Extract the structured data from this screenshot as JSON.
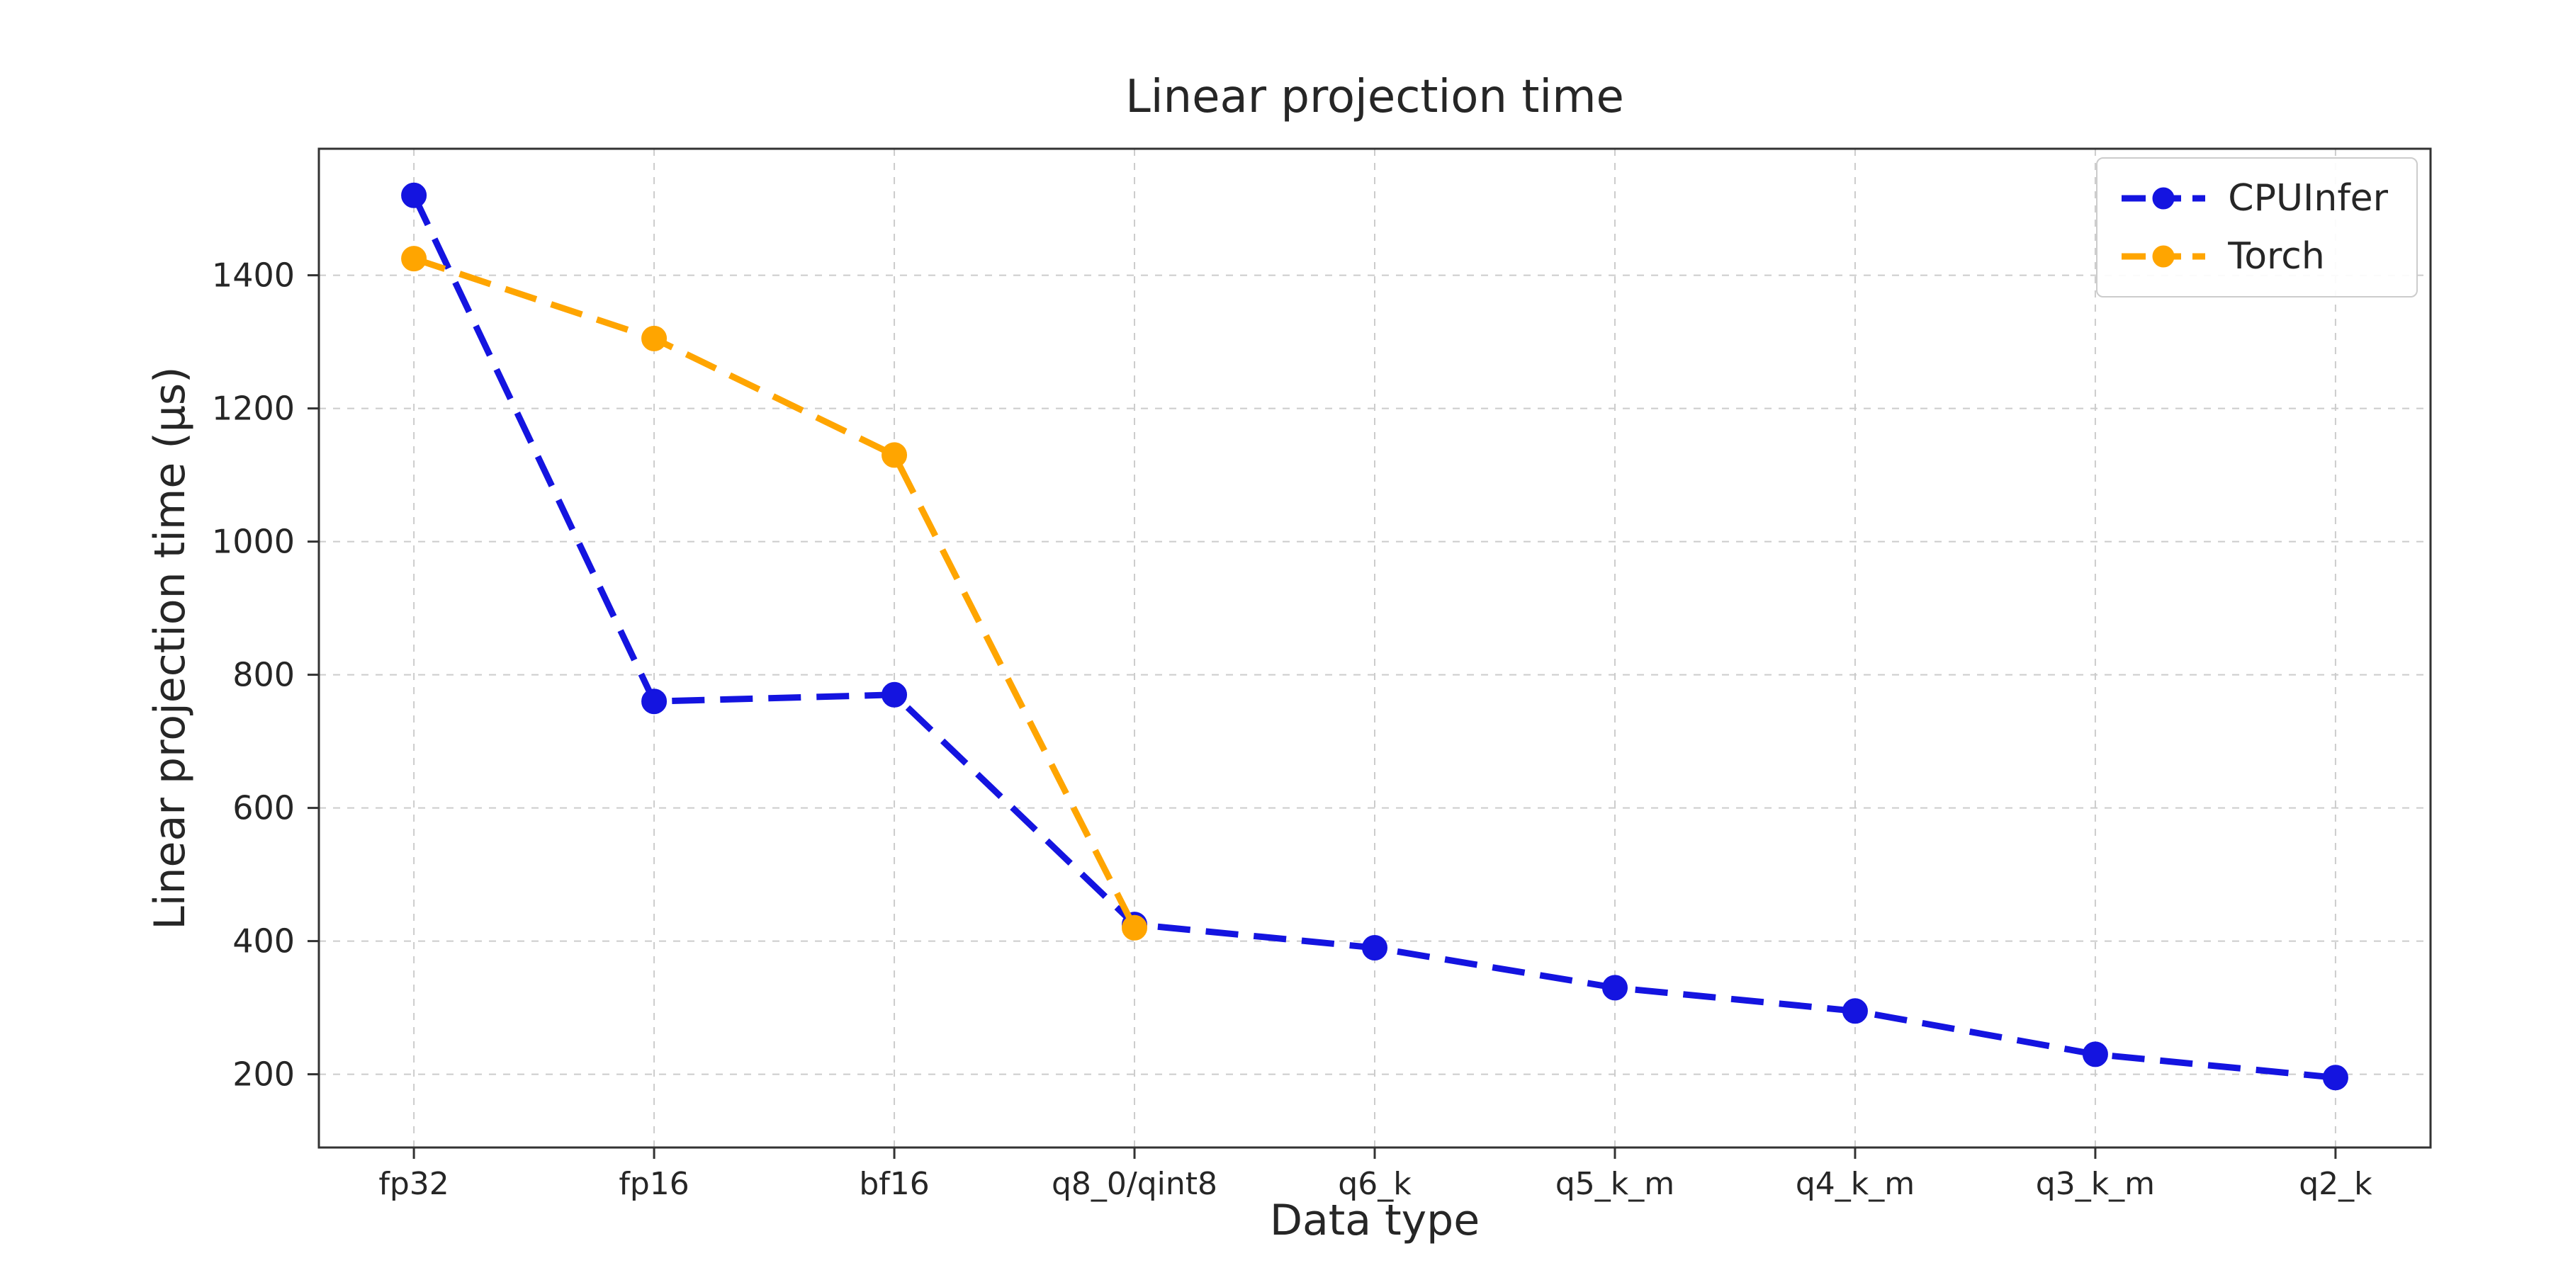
{
  "chart_data": {
    "type": "line",
    "title": "Linear projection time",
    "xlabel": "Data type",
    "ylabel": "Linear projection time (µs)",
    "categories": [
      "fp32",
      "fp16",
      "bf16",
      "q8_0/qint8",
      "q6_k",
      "q5_k_m",
      "q4_k_m",
      "q3_k_m",
      "q2_k"
    ],
    "series": [
      {
        "name": "CPUInfer",
        "color": "#1414e0",
        "values": [
          1520,
          760,
          770,
          425,
          390,
          330,
          295,
          230,
          195
        ]
      },
      {
        "name": "Torch",
        "color": "#ffa500",
        "values": [
          1425,
          1305,
          1130,
          420
        ]
      }
    ],
    "ylim": [
      90,
      1590
    ],
    "yticks": [
      200,
      400,
      600,
      800,
      1000,
      1200,
      1400
    ],
    "grid": true,
    "grid_style": "dashed",
    "line_style": "dashed",
    "marker": "circle",
    "legend_position": "upper right"
  },
  "colors": {
    "background": "#ffffff",
    "grid": "#cccccc",
    "axis": "#333333",
    "text": "#262626",
    "legend_border": "#cccccc"
  }
}
